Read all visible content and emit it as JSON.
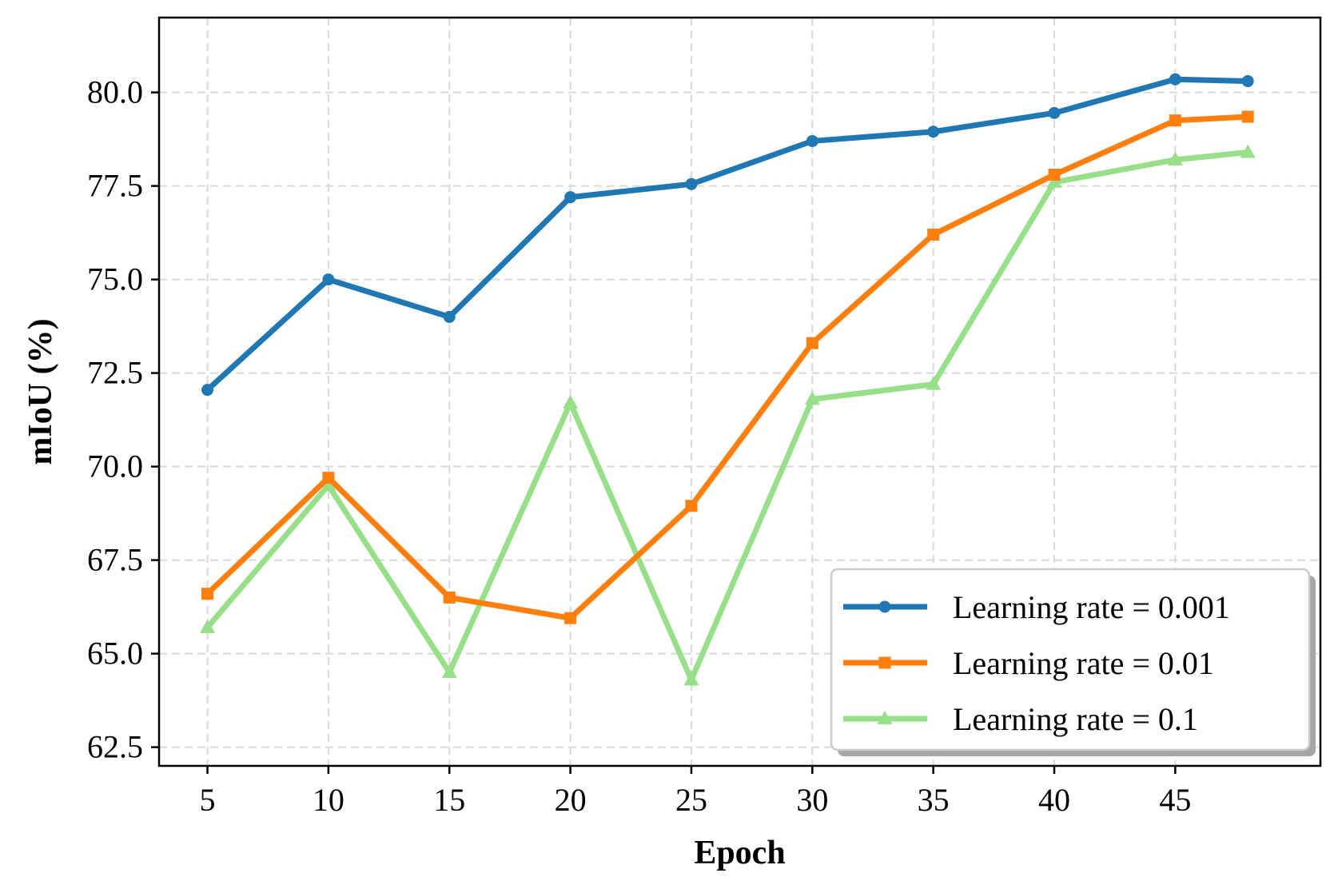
{
  "chart_data": {
    "type": "line",
    "title": "",
    "xlabel": "Epoch",
    "ylabel": "mIoU (%)",
    "x": [
      5,
      10,
      15,
      20,
      25,
      30,
      35,
      40,
      45,
      48
    ],
    "xticks": [
      5,
      10,
      15,
      20,
      25,
      30,
      35,
      40,
      45
    ],
    "yticks": [
      "62.5",
      "65.0",
      "67.5",
      "70.0",
      "72.5",
      "75.0",
      "77.5",
      "80.0"
    ],
    "xlim": [
      3,
      51
    ],
    "ylim": [
      62.0,
      82.0
    ],
    "grid": true,
    "legend_position": "lower-right",
    "series": [
      {
        "name": "Learning rate = 0.001",
        "color": "#1f77b4",
        "marker": "circle",
        "values": [
          72.05,
          75.0,
          74.0,
          77.2,
          77.55,
          78.7,
          78.95,
          79.45,
          80.35,
          80.3
        ]
      },
      {
        "name": "Learning rate = 0.01",
        "color": "#ff7f0e",
        "marker": "square",
        "values": [
          66.6,
          69.7,
          66.5,
          65.95,
          68.95,
          73.3,
          76.2,
          77.8,
          79.25,
          79.35
        ]
      },
      {
        "name": "Learning rate = 0.1",
        "color": "#98df8a",
        "marker": "triangle",
        "values": [
          65.7,
          69.5,
          64.5,
          71.7,
          64.3,
          71.8,
          72.2,
          77.6,
          78.2,
          78.4
        ]
      }
    ]
  }
}
